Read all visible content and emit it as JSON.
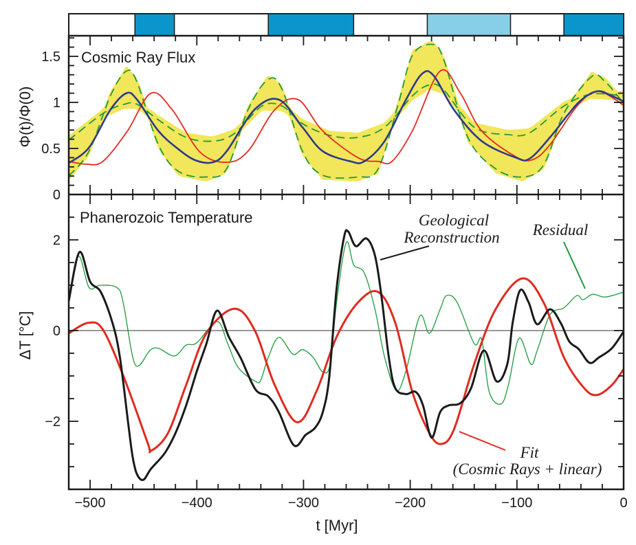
{
  "chart_data": [
    {
      "type": "bar",
      "panel": "period-bar",
      "xlim": [
        -520,
        0
      ],
      "bands": [
        {
          "from": -458,
          "to": -421,
          "color": "#0a96cc"
        },
        {
          "from": -333,
          "to": -253,
          "color": "#0a96cc"
        },
        {
          "from": -184,
          "to": -106,
          "color": "#86cfe6"
        },
        {
          "from": -56,
          "to": 0,
          "color": "#0a96cc"
        }
      ]
    },
    {
      "type": "line",
      "panel": "cosmic-ray",
      "title": "Cosmic Ray Flux",
      "ylabel": "Φ(t)/Φ(0)",
      "xlim": [
        -520,
        0
      ],
      "ylim": [
        0,
        1.72
      ],
      "yticks": [
        0,
        0.5,
        1,
        1.5
      ],
      "ytick_labels": [
        "0",
        "0.5",
        "1",
        "1.5"
      ],
      "band_color": "#f2e65a",
      "series": [
        {
          "color": "#2d3a8c",
          "style": "solid",
          "x": [
            -520,
            -501,
            -481,
            -466,
            -456,
            -436,
            -417,
            -401,
            -385,
            -372,
            -346,
            -323,
            -301,
            -282,
            -256,
            -243,
            -224,
            -204,
            -189,
            -178,
            -159,
            -133,
            -101,
            -88,
            -69,
            -43,
            -25,
            -11,
            0
          ],
          "y": [
            0.34,
            0.51,
            0.92,
            1.1,
            1.03,
            0.69,
            0.49,
            0.37,
            0.35,
            0.47,
            0.92,
            1.03,
            0.73,
            0.47,
            0.36,
            0.36,
            0.58,
            1.03,
            1.31,
            1.29,
            0.92,
            0.58,
            0.4,
            0.39,
            0.62,
            0.99,
            1.12,
            1.07,
            1.01
          ]
        },
        {
          "color": "#e02a1e",
          "style": "solid",
          "x": [
            -520,
            -504,
            -488,
            -465,
            -443,
            -423,
            -397,
            -372,
            -352,
            -327,
            -305,
            -282,
            -249,
            -230,
            -217,
            -198,
            -172,
            -153,
            -133,
            -101,
            -85,
            -69,
            -43,
            -24,
            0
          ],
          "y": [
            0.36,
            0.33,
            0.36,
            0.69,
            1.1,
            0.92,
            0.46,
            0.35,
            0.47,
            0.92,
            1.03,
            0.69,
            0.4,
            0.36,
            0.36,
            0.69,
            1.34,
            1.1,
            0.69,
            0.41,
            0.38,
            0.54,
            0.97,
            1.12,
            0.97
          ]
        },
        {
          "color": "#1d9a3c",
          "style": "dashed",
          "x": [
            -520,
            -501,
            -481,
            -466,
            -456,
            -436,
            -417,
            -391,
            -372,
            -352,
            -333,
            -320,
            -301,
            -282,
            -249,
            -230,
            -211,
            -198,
            -180,
            -169,
            -146,
            -120,
            -95,
            -75,
            -56,
            -30,
            -17,
            0
          ],
          "y": [
            0.2,
            0.47,
            1.07,
            1.34,
            1.22,
            0.54,
            0.25,
            0.19,
            0.28,
            0.92,
            1.25,
            1.14,
            0.47,
            0.21,
            0.19,
            0.28,
            0.99,
            1.51,
            1.63,
            1.48,
            0.62,
            0.28,
            0.19,
            0.32,
            0.88,
            1.28,
            1.22,
            0.99
          ]
        },
        {
          "color": "#1d9a3c",
          "style": "dashed",
          "x": [
            -520,
            -488,
            -468,
            -456,
            -436,
            -410,
            -385,
            -365,
            -339,
            -320,
            -301,
            -275,
            -249,
            -224,
            -198,
            -182,
            -169,
            -140,
            -108,
            -88,
            -56,
            -30,
            0
          ],
          "y": [
            0.59,
            0.88,
            0.98,
            0.98,
            0.81,
            0.62,
            0.58,
            0.66,
            0.96,
            0.96,
            0.77,
            0.64,
            0.62,
            0.73,
            1.07,
            1.19,
            1.14,
            0.73,
            0.65,
            0.67,
            0.96,
            1.09,
            1.07
          ]
        }
      ]
    },
    {
      "type": "line",
      "panel": "temperature",
      "title": "Phanerozoic Temperature",
      "ylabel": "ΔT [°C]",
      "xlabel": "t [Myr]",
      "xlim": [
        -520,
        0
      ],
      "ylim": [
        -3.5,
        3.05
      ],
      "xticks": [
        -500,
        -400,
        -300,
        -200,
        -100,
        0
      ],
      "xtick_labels": [
        "−500",
        "−400",
        "−300",
        "−200",
        "−100",
        "0"
      ],
      "yticks": [
        -2,
        0,
        2
      ],
      "ytick_labels": [
        "−2",
        "0",
        "2"
      ],
      "zero_line": true,
      "series": [
        {
          "name": "Geological Reconstruction",
          "color": "#1a1a1a",
          "style": "solid",
          "x": [
            -520,
            -510,
            -500,
            -490,
            -479,
            -472,
            -464,
            -460,
            -456,
            -450,
            -443,
            -430,
            -420,
            -410,
            -400,
            -391,
            -381,
            -370,
            -359,
            -345,
            -333,
            -323,
            -309,
            -298,
            -289,
            -282,
            -276,
            -269,
            -262,
            -258,
            -251,
            -241,
            -233,
            -227,
            -220,
            -214,
            -204,
            -195,
            -188,
            -180,
            -172,
            -164,
            -153,
            -143,
            -131,
            -119,
            -109,
            -104,
            -97,
            -89,
            -81,
            -69,
            -59,
            -51,
            -42,
            -32,
            -23,
            -11,
            0
          ],
          "y": [
            0.65,
            1.73,
            1.08,
            0.85,
            0.17,
            -0.6,
            -2.1,
            -2.8,
            -3.17,
            -3.29,
            -3.05,
            -2.7,
            -2.26,
            -1.65,
            -0.9,
            -0.29,
            0.44,
            -0.14,
            -0.6,
            -1.3,
            -1.45,
            -1.8,
            -2.53,
            -2.3,
            -2.14,
            -1.8,
            -1.05,
            0.92,
            2.06,
            2.18,
            1.86,
            2.03,
            1.65,
            0.77,
            -0.6,
            -1.27,
            -1.4,
            -1.35,
            -1.65,
            -2.36,
            -1.8,
            -1.65,
            -1.6,
            -1.27,
            -0.44,
            -1.12,
            -0.74,
            0.17,
            0.89,
            0.62,
            0.14,
            0.47,
            0.17,
            -0.24,
            -0.41,
            -0.71,
            -0.59,
            -0.39,
            -0.02
          ]
        },
        {
          "name": "Fit (Cosmic Rays + linear)",
          "color": "#e02a1e",
          "style": "solid",
          "x": [
            -520,
            -502,
            -488,
            -468,
            -446,
            -443,
            -427,
            -410,
            -391,
            -365,
            -346,
            -327,
            -306,
            -288,
            -269,
            -249,
            -230,
            -214,
            -198,
            -182,
            -171,
            -159,
            -140,
            -120,
            -95,
            -75,
            -56,
            -37,
            -25,
            -11,
            0
          ],
          "y": [
            -0.06,
            0.17,
            0.02,
            -1.05,
            -2.48,
            -2.65,
            -2.26,
            -1.2,
            -0.06,
            0.48,
            0.02,
            -1.2,
            -2.02,
            -1.35,
            -0.14,
            0.62,
            0.85,
            0.17,
            -1.35,
            -2.26,
            -2.5,
            -2.18,
            -0.74,
            0.47,
            1.15,
            0.62,
            -0.59,
            -1.27,
            -1.42,
            -1.2,
            -0.85
          ]
        },
        {
          "name": "Residual",
          "color": "#1d9a3c",
          "style": "solid",
          "x": [
            -520,
            -511,
            -501,
            -491,
            -475,
            -469,
            -460,
            -454,
            -444,
            -436,
            -421,
            -410,
            -400,
            -381,
            -371,
            -361,
            -345,
            -340,
            -333,
            -323,
            -310,
            -301,
            -291,
            -282,
            -275,
            -269,
            -260,
            -253,
            -243,
            -233,
            -224,
            -213,
            -204,
            -191,
            -182,
            -172,
            -166,
            -156,
            -140,
            -133,
            -126,
            -115,
            -108,
            -98,
            -87,
            -81,
            -69,
            -56,
            -44,
            -38,
            -29,
            -17,
            0
          ],
          "y": [
            0.67,
            1.64,
            0.95,
            1.0,
            0.95,
            0.62,
            -0.59,
            -0.77,
            -0.44,
            -0.39,
            -0.56,
            -0.32,
            -0.27,
            0.2,
            -0.29,
            -0.82,
            -1.12,
            -1.09,
            -0.59,
            -0.15,
            -0.52,
            -0.42,
            -0.59,
            -0.91,
            -0.74,
            0.62,
            1.94,
            1.45,
            1.27,
            0.47,
            -0.59,
            -1.32,
            -0.89,
            0.32,
            -0.06,
            0.47,
            0.77,
            0.62,
            -0.29,
            -0.2,
            -1.35,
            -1.62,
            -1.2,
            -0.17,
            -0.74,
            -0.44,
            0.35,
            0.5,
            0.77,
            0.68,
            0.8,
            0.74,
            0.85
          ]
        }
      ],
      "annotations": [
        {
          "lines": [
            "Geological",
            "Reconstruction"
          ],
          "series": "Geological Reconstruction"
        },
        {
          "lines": [
            "Residual"
          ],
          "series": "Residual"
        },
        {
          "lines": [
            "Fit",
            "(Cosmic Rays + linear)"
          ],
          "series": "Fit (Cosmic Rays + linear)"
        }
      ]
    }
  ]
}
